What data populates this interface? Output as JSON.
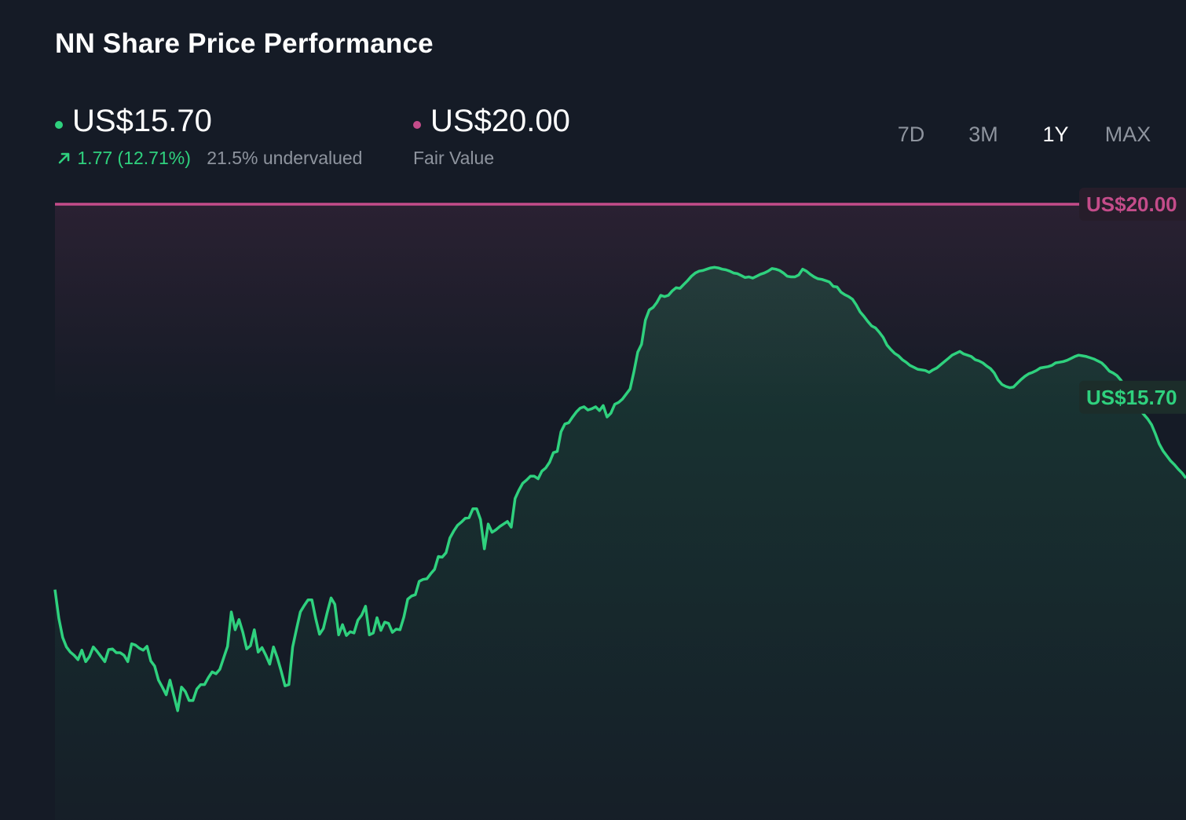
{
  "header": {
    "title": "NN Share Price Performance",
    "price": "US$15.70",
    "change": "1.77 (12.71%)",
    "valuation": "21.5% undervalued",
    "fair_value": "US$20.00",
    "fair_value_label": "Fair Value"
  },
  "tabs": [
    {
      "label": "7D"
    },
    {
      "label": "3M"
    },
    {
      "label": "1Y"
    },
    {
      "label": "MAX"
    }
  ],
  "active_tab": "1Y",
  "colors": {
    "price_line": "#2fd17e",
    "fair_value": "#c44c8a",
    "background": "#151b26"
  },
  "icons": {
    "change_arrow": "arrow-up-right-icon"
  },
  "chart_data": {
    "type": "line",
    "title": "",
    "xlabel": "",
    "ylabel": "",
    "ylim": [
      11.0,
      20.0
    ],
    "fair_value_line": 20.0,
    "fair_value_tag": "US$20.00",
    "last_value_tag": "US$15.70",
    "series": [
      {
        "values": [
          13.95,
          13.5,
          13.2,
          13.05,
          12.97,
          12.92,
          12.85,
          13.0,
          12.82,
          12.9,
          13.05,
          12.98,
          12.9,
          12.82,
          13.01,
          13.02,
          12.96,
          12.96,
          12.92,
          12.82,
          13.1,
          13.08,
          13.03,
          13.0,
          13.06,
          12.83,
          12.75,
          12.53,
          12.42,
          12.3,
          12.53,
          12.29,
          12.05,
          12.42,
          12.35,
          12.21,
          12.21,
          12.39,
          12.46,
          12.46,
          12.57,
          12.66,
          12.63,
          12.7,
          12.88,
          13.06,
          13.6,
          13.32,
          13.48,
          13.28,
          13.02,
          13.07,
          13.32,
          12.97,
          13.04,
          12.92,
          12.78,
          13.05,
          12.88,
          12.67,
          12.44,
          12.46,
          13.05,
          13.33,
          13.6,
          13.7,
          13.79,
          13.79,
          13.5,
          13.25,
          13.34,
          13.59,
          13.82,
          13.72,
          13.24,
          13.4,
          13.23,
          13.29,
          13.27,
          13.47,
          13.55,
          13.69,
          13.24,
          13.27,
          13.51,
          13.31,
          13.44,
          13.42,
          13.28,
          13.33,
          13.32,
          13.52,
          13.8,
          13.85,
          13.87,
          14.08,
          14.11,
          14.12,
          14.2,
          14.27,
          14.47,
          14.46,
          14.53,
          14.76,
          14.87,
          14.96,
          15.01,
          15.07,
          15.08,
          15.22,
          15.22,
          15.05,
          14.59,
          14.98,
          14.85,
          14.89,
          14.94,
          14.98,
          15.02,
          14.93,
          15.38,
          15.51,
          15.62,
          15.67,
          15.73,
          15.73,
          15.69,
          15.81,
          15.86,
          15.95,
          16.1,
          16.12,
          16.43,
          16.55,
          16.57,
          16.66,
          16.74,
          16.8,
          16.82,
          16.77,
          16.79,
          16.82,
          16.76,
          16.84,
          16.66,
          16.72,
          16.86,
          16.89,
          16.94,
          17.02,
          17.1,
          17.37,
          17.68,
          17.8,
          18.18,
          18.34,
          18.38,
          18.46,
          18.57,
          18.55,
          18.57,
          18.64,
          18.69,
          18.68,
          18.74,
          18.8,
          18.87,
          18.92,
          18.95,
          18.96,
          18.98,
          19.0,
          19.01,
          19.0,
          18.98,
          18.97,
          18.95,
          18.92,
          18.91,
          18.88,
          18.85,
          18.86,
          18.84,
          18.87,
          18.9,
          18.92,
          18.95,
          18.99,
          18.98,
          18.96,
          18.92,
          18.87,
          18.86,
          18.86,
          18.89,
          18.98,
          18.95,
          18.9,
          18.86,
          18.83,
          18.82,
          18.8,
          18.78,
          18.71,
          18.7,
          18.62,
          18.58,
          18.55,
          18.51,
          18.42,
          18.31,
          18.24,
          18.16,
          18.09,
          18.06,
          17.99,
          17.91,
          17.79,
          17.72,
          17.66,
          17.62,
          17.56,
          17.52,
          17.47,
          17.44,
          17.41,
          17.4,
          17.39,
          17.36,
          17.4,
          17.43,
          17.48,
          17.53,
          17.58,
          17.63,
          17.66,
          17.69,
          17.65,
          17.63,
          17.61,
          17.56,
          17.54,
          17.51,
          17.46,
          17.42,
          17.35,
          17.24,
          17.17,
          17.14,
          17.12,
          17.13,
          17.19,
          17.25,
          17.3,
          17.34,
          17.36,
          17.39,
          17.43,
          17.44,
          17.45,
          17.47,
          17.51,
          17.52,
          17.53,
          17.55,
          17.58,
          17.61,
          17.63,
          17.62,
          17.61,
          17.59,
          17.57,
          17.54,
          17.51,
          17.45,
          17.38,
          17.35,
          17.31,
          17.24,
          17.15,
          17.06,
          16.95,
          16.85,
          16.77,
          16.7,
          16.63,
          16.54,
          16.4,
          16.24,
          16.13,
          16.05,
          15.97,
          15.91,
          15.84,
          15.78,
          15.7
        ]
      }
    ]
  }
}
